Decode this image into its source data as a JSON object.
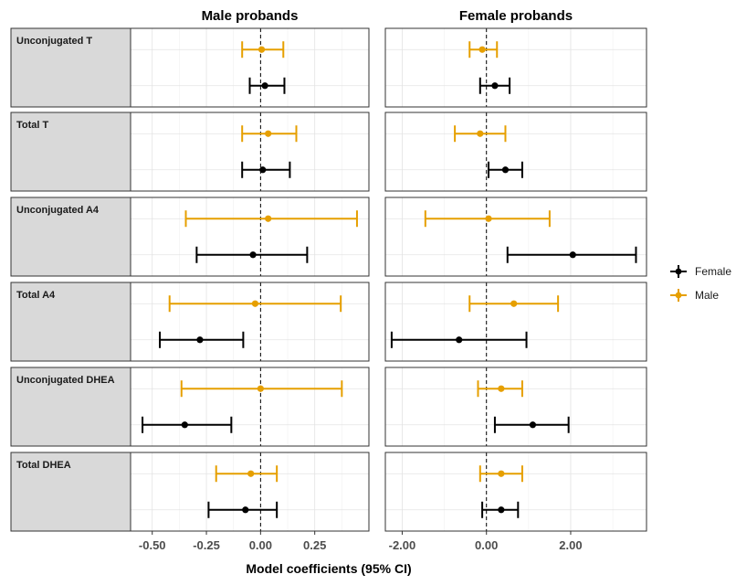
{
  "chart_data": {
    "type": "forest",
    "x_title": "Model coefficients (95% CI)",
    "legend": [
      {
        "name": "Female",
        "color": "#000000"
      },
      {
        "name": "Male",
        "color": "#E69F00"
      }
    ],
    "legend_placement": "right",
    "grid": true,
    "reference_line": 0,
    "rows": [
      "Unconjugated T",
      "Total T",
      "Unconjugated A4",
      "Total A4",
      "Unconjugated DHEA",
      "Total DHEA"
    ],
    "panels": [
      {
        "title": "Male probands",
        "xlim": [
          -0.6,
          0.5
        ],
        "ticks": [
          -0.5,
          -0.25,
          0.0,
          0.25
        ],
        "tick_labels": [
          "-0.50",
          "-0.25",
          "0.00",
          "0.25"
        ],
        "series": [
          {
            "name": "Male",
            "estimates": [
              0.005,
              0.035,
              0.035,
              -0.025,
              0.0,
              -0.045
            ],
            "lower": [
              -0.085,
              -0.085,
              -0.345,
              -0.42,
              -0.365,
              -0.205
            ],
            "upper": [
              0.105,
              0.165,
              0.445,
              0.37,
              0.375,
              0.075
            ]
          },
          {
            "name": "Female",
            "estimates": [
              0.02,
              0.01,
              -0.035,
              -0.28,
              -0.35,
              -0.07
            ],
            "lower": [
              -0.05,
              -0.085,
              -0.295,
              -0.465,
              -0.545,
              -0.24
            ],
            "upper": [
              0.11,
              0.135,
              0.215,
              -0.08,
              -0.135,
              0.075
            ]
          }
        ]
      },
      {
        "title": "Female probands",
        "xlim": [
          -2.4,
          3.8
        ],
        "ticks": [
          -2.0,
          0.0,
          2.0
        ],
        "tick_labels": [
          "-2.00",
          "0.00",
          "2.00"
        ],
        "series": [
          {
            "name": "Male",
            "estimates": [
              -0.1,
              -0.15,
              0.05,
              0.65,
              0.35,
              0.35
            ],
            "lower": [
              -0.4,
              -0.75,
              -1.45,
              -0.4,
              -0.2,
              -0.15
            ],
            "upper": [
              0.25,
              0.45,
              1.5,
              1.7,
              0.85,
              0.85
            ]
          },
          {
            "name": "Female",
            "estimates": [
              0.2,
              0.45,
              2.05,
              -0.65,
              1.1,
              0.35
            ],
            "lower": [
              -0.15,
              0.05,
              0.5,
              -2.25,
              0.2,
              -0.1
            ],
            "upper": [
              0.55,
              0.85,
              3.55,
              0.95,
              1.95,
              0.75
            ]
          }
        ]
      }
    ]
  }
}
